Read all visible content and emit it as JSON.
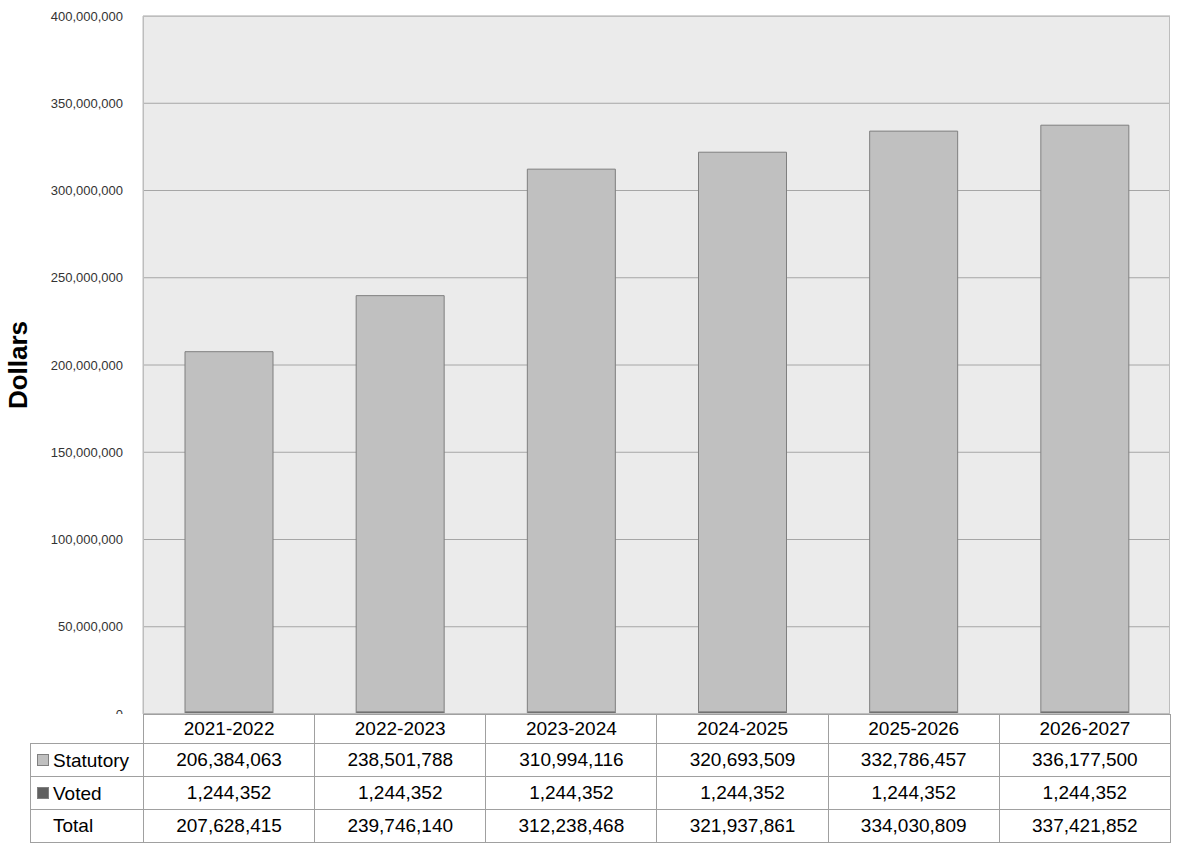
{
  "chart_data": {
    "type": "bar",
    "stacked": true,
    "grid": true,
    "y_label": "Dollars",
    "categories": [
      "2021-2022",
      "2022-2023",
      "2023-2024",
      "2024-2025",
      "2025-2026",
      "2026-2027"
    ],
    "series": [
      {
        "name": "Statutory",
        "color": "#c0c0c0",
        "values": [
          206384063,
          238501788,
          310994116,
          320693509,
          332786457,
          336177500
        ],
        "value_labels": [
          "206,384,063",
          "238,501,788",
          "310,994,116",
          "320,693,509",
          "332,786,457",
          "336,177,500"
        ]
      },
      {
        "name": "Voted",
        "color": "#606060",
        "values": [
          1244352,
          1244352,
          1244352,
          1244352,
          1244352,
          1244352
        ],
        "value_labels": [
          "1,244,352",
          "1,244,352",
          "1,244,352",
          "1,244,352",
          "1,244,352",
          "1,244,352"
        ]
      }
    ],
    "total": {
      "name": "Total",
      "values": [
        207628415,
        239746140,
        312238468,
        321937861,
        334030809,
        337421852
      ],
      "value_labels": [
        "207,628,415",
        "239,746,140",
        "312,238,468",
        "321,937,861",
        "334,030,809",
        "337,421,852"
      ]
    },
    "ylim": [
      0,
      400000000
    ],
    "yticks": [
      {
        "value": 0,
        "label": "0"
      },
      {
        "value": 50000000,
        "label": "50,000,000"
      },
      {
        "value": 100000000,
        "label": "100,000,000"
      },
      {
        "value": 150000000,
        "label": "150,000,000"
      },
      {
        "value": 200000000,
        "label": "200,000,000"
      },
      {
        "value": 250000000,
        "label": "250,000,000"
      },
      {
        "value": 300000000,
        "label": "300,000,000"
      },
      {
        "value": 350000000,
        "label": "350,000,000"
      },
      {
        "value": 400000000,
        "label": "400,000,000"
      }
    ]
  }
}
